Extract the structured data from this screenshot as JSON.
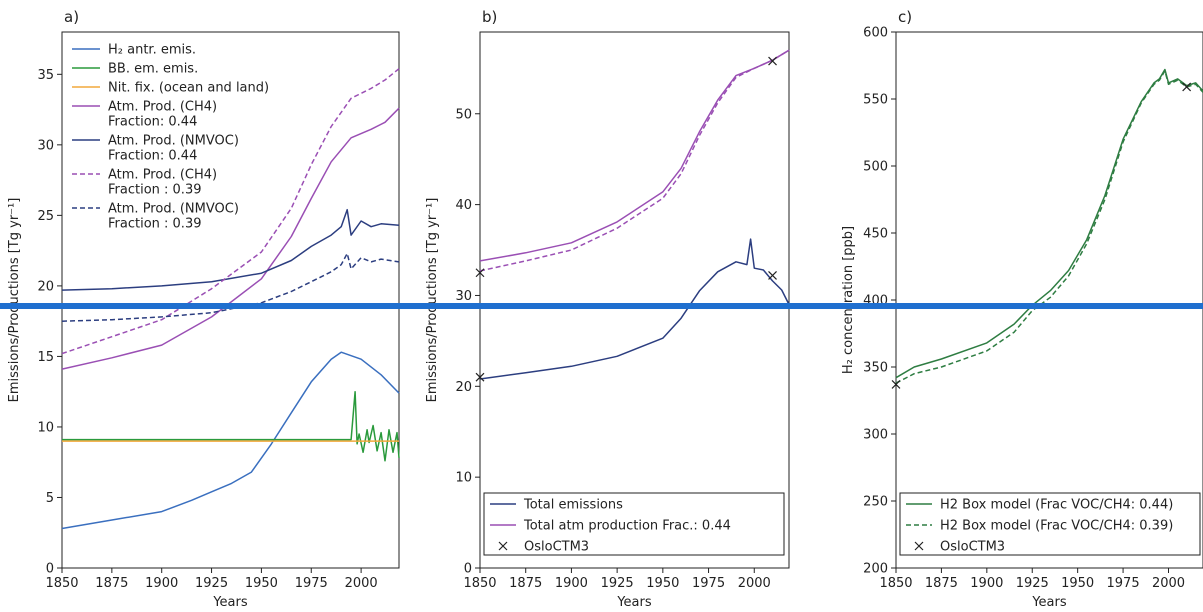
{
  "colors": {
    "h2_antr": "#3a6fbf",
    "bb": "#2a9a3c",
    "nit": "#f2a93b",
    "ch4": "#9a4fb4",
    "nmvoc": "#2c3e80",
    "total_emis": "#2c3e80",
    "total_atm": "#9a4fb4",
    "box": "#2e7d42",
    "overlay_line": "#1f6fcf"
  },
  "chart_data": [
    {
      "panel_label": "a)",
      "type": "line",
      "xlabel": "Years",
      "ylabel": "Emissions/Productions [Tg yr⁻¹]",
      "xlim": [
        1850,
        2019
      ],
      "ylim": [
        0,
        38
      ],
      "xticks": [
        1850,
        1875,
        1900,
        1925,
        1950,
        1975,
        2000
      ],
      "yticks": [
        0,
        5,
        10,
        15,
        20,
        25,
        30,
        35
      ],
      "legend_position": "upper-left",
      "series": [
        {
          "name": "H₂ antr. emis.",
          "color_key": "h2_antr",
          "dash": false,
          "x": [
            1850,
            1875,
            1900,
            1915,
            1925,
            1935,
            1945,
            1955,
            1965,
            1975,
            1985,
            1990,
            2000,
            2010,
            2019
          ],
          "y": [
            2.8,
            3.4,
            4.0,
            4.8,
            5.4,
            6.0,
            6.8,
            8.8,
            11.0,
            13.2,
            14.8,
            15.3,
            14.8,
            13.7,
            12.4
          ]
        },
        {
          "name": "BB. em. emis.",
          "color_key": "bb",
          "dash": false,
          "x": [
            1850,
            1995,
            1997,
            1998,
            1999,
            2001,
            2003,
            2004,
            2006,
            2008,
            2010,
            2012,
            2014,
            2016,
            2018,
            2019
          ],
          "y": [
            9.1,
            9.1,
            12.5,
            8.8,
            9.5,
            8.2,
            9.8,
            8.9,
            10.1,
            8.3,
            9.6,
            7.6,
            9.8,
            8.2,
            9.6,
            7.8
          ]
        },
        {
          "name": "Nit. fix. (ocean and land)",
          "color_key": "nit",
          "dash": false,
          "x": [
            1850,
            2019
          ],
          "y": [
            9.0,
            9.0
          ]
        },
        {
          "name": "Atm. Prod. (CH4)\nFraction: 0.44",
          "color_key": "ch4",
          "dash": false,
          "x": [
            1850,
            1875,
            1900,
            1925,
            1950,
            1965,
            1975,
            1985,
            1995,
            2005,
            2012,
            2019
          ],
          "y": [
            14.1,
            14.9,
            15.8,
            17.8,
            20.5,
            23.5,
            26.2,
            28.8,
            30.5,
            31.1,
            31.6,
            32.6
          ]
        },
        {
          "name": "Atm. Prod. (NMVOC)\nFraction: 0.44",
          "color_key": "nmvoc",
          "dash": false,
          "x": [
            1850,
            1875,
            1900,
            1925,
            1950,
            1965,
            1975,
            1985,
            1990,
            1993,
            1995,
            2000,
            2005,
            2010,
            2019
          ],
          "y": [
            19.7,
            19.8,
            20.0,
            20.3,
            20.9,
            21.8,
            22.8,
            23.6,
            24.2,
            25.4,
            23.6,
            24.6,
            24.2,
            24.4,
            24.3
          ]
        },
        {
          "name": "Atm. Prod. (CH4)\nFraction : 0.39",
          "color_key": "ch4",
          "dash": true,
          "x": [
            1850,
            1875,
            1900,
            1925,
            1950,
            1965,
            1975,
            1985,
            1995,
            2005,
            2012,
            2019
          ],
          "y": [
            15.2,
            16.4,
            17.6,
            19.8,
            22.4,
            25.5,
            28.6,
            31.3,
            33.3,
            34.0,
            34.6,
            35.4
          ]
        },
        {
          "name": "Atm. Prod. (NMVOC)\n Fraction : 0.39",
          "color_key": "nmvoc",
          "dash": true,
          "x": [
            1850,
            1875,
            1900,
            1925,
            1950,
            1965,
            1975,
            1985,
            1990,
            1993,
            1995,
            2000,
            2005,
            2010,
            2019
          ],
          "y": [
            17.5,
            17.6,
            17.8,
            18.1,
            18.8,
            19.6,
            20.3,
            21.0,
            21.5,
            22.3,
            21.2,
            22.0,
            21.7,
            21.9,
            21.7
          ]
        }
      ]
    },
    {
      "panel_label": "b)",
      "type": "line",
      "xlabel": "Years",
      "ylabel": "Emissions/Productions [Tg yr⁻¹]",
      "xlim": [
        1850,
        2019
      ],
      "ylim": [
        0,
        59
      ],
      "xticks": [
        1850,
        1875,
        1900,
        1925,
        1950,
        1975,
        2000
      ],
      "yticks": [
        0,
        10,
        20,
        30,
        40,
        50
      ],
      "legend_position": "lower-left",
      "series": [
        {
          "name": "Total emissions",
          "color_key": "total_emis",
          "dash": false,
          "x": [
            1850,
            1875,
            1900,
            1925,
            1950,
            1960,
            1970,
            1980,
            1990,
            1996,
            1998,
            2000,
            2005,
            2010,
            2015,
            2019
          ],
          "y": [
            20.8,
            21.5,
            22.2,
            23.3,
            25.3,
            27.5,
            30.5,
            32.6,
            33.7,
            33.4,
            36.2,
            33.0,
            32.8,
            31.6,
            30.6,
            29.0
          ]
        },
        {
          "name": "Total atm production Frac.: 0.44",
          "color_key": "total_atm",
          "dash": false,
          "x": [
            1850,
            1875,
            1900,
            1925,
            1950,
            1960,
            1970,
            1980,
            1990,
            2000,
            2010,
            2019
          ],
          "y": [
            33.8,
            34.7,
            35.8,
            38.1,
            41.4,
            44.0,
            48.0,
            51.5,
            54.2,
            55.0,
            55.9,
            57.0
          ]
        },
        {
          "name": "",
          "color_key": "total_atm",
          "dash": true,
          "x": [
            1850,
            1875,
            1900,
            1925,
            1950,
            1960,
            1970,
            1980,
            1990,
            2000,
            2010,
            2019
          ],
          "y": [
            32.7,
            33.8,
            35.0,
            37.4,
            40.7,
            43.4,
            47.6,
            51.2,
            54.0,
            55.0,
            55.9,
            57.0
          ]
        }
      ],
      "markers": {
        "name": "OsloCTM3",
        "symbol": "x",
        "points": [
          [
            1850,
            32.5
          ],
          [
            1850,
            21.0
          ],
          [
            2010,
            55.8
          ],
          [
            2010,
            32.2
          ]
        ]
      }
    },
    {
      "panel_label": "c)",
      "type": "line",
      "xlabel": "Years",
      "ylabel": "H₂ concentration [ppb]",
      "xlim": [
        1850,
        2019
      ],
      "ylim": [
        200,
        600
      ],
      "xticks": [
        1850,
        1875,
        1900,
        1925,
        1950,
        1975,
        2000
      ],
      "yticks": [
        200,
        250,
        300,
        350,
        400,
        450,
        500,
        550,
        600
      ],
      "legend_position": "lower-left",
      "series": [
        {
          "name": "H2 Box model (Frac VOC/CH4: 0.44)",
          "color_key": "box",
          "dash": false,
          "x": [
            1850,
            1860,
            1875,
            1900,
            1915,
            1925,
            1935,
            1945,
            1955,
            1965,
            1975,
            1985,
            1992,
            1995,
            1998,
            2000,
            2005,
            2010,
            2015,
            2019
          ],
          "y": [
            342,
            350,
            356,
            368,
            382,
            396,
            407,
            422,
            445,
            478,
            520,
            548,
            562,
            565,
            572,
            562,
            565,
            560,
            562,
            556
          ]
        },
        {
          "name": "H2 Box model (Frac VOC/CH4: 0.39)",
          "color_key": "box",
          "dash": true,
          "x": [
            1850,
            1860,
            1875,
            1900,
            1915,
            1925,
            1935,
            1945,
            1955,
            1965,
            1975,
            1985,
            1992,
            1995,
            1998,
            2000,
            2005,
            2010,
            2015,
            2019
          ],
          "y": [
            338,
            345,
            350,
            362,
            376,
            392,
            402,
            418,
            442,
            475,
            518,
            547,
            561,
            564,
            571,
            561,
            564,
            559,
            561,
            555
          ]
        }
      ],
      "markers": {
        "name": "OsloCTM3",
        "symbol": "x",
        "points": [
          [
            1850,
            337
          ],
          [
            2010,
            559
          ]
        ]
      }
    }
  ]
}
